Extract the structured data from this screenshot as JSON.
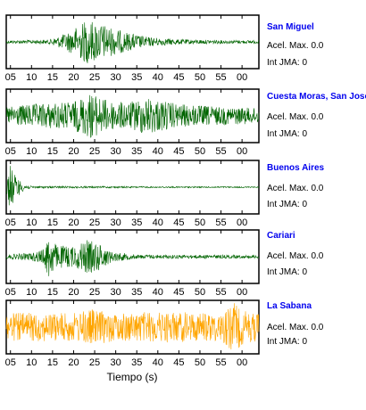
{
  "chart_data": {
    "type": "line",
    "description_kind": "seismogram-panels",
    "xlabel": "Tiempo (s)",
    "x_tick_labels": [
      "05",
      "10",
      "15",
      "20",
      "25",
      "30",
      "35",
      "40",
      "45",
      "50",
      "55",
      "00"
    ],
    "panels": [
      {
        "station": "San Miguel",
        "acel_label": "Acel. Max. 0.0",
        "jma_label": "Int JMA: 0",
        "color": "#006400",
        "envelope": [
          [
            4,
            0.06
          ],
          [
            14,
            0.08
          ],
          [
            17,
            0.25
          ],
          [
            20,
            0.5
          ],
          [
            23,
            0.85
          ],
          [
            26,
            0.75
          ],
          [
            29,
            0.55
          ],
          [
            33,
            0.35
          ],
          [
            38,
            0.18
          ],
          [
            45,
            0.1
          ],
          [
            55,
            0.07
          ],
          [
            64,
            0.06
          ]
        ]
      },
      {
        "station": "Cuesta Moras, San Jose",
        "acel_label": "Acel. Max. 0.0",
        "jma_label": "Int JMA: 0",
        "color": "#006400",
        "envelope": [
          [
            4,
            0.35
          ],
          [
            10,
            0.45
          ],
          [
            15,
            0.5
          ],
          [
            20,
            0.55
          ],
          [
            24,
            0.9
          ],
          [
            28,
            0.6
          ],
          [
            33,
            0.5
          ],
          [
            37,
            0.75
          ],
          [
            45,
            0.45
          ],
          [
            55,
            0.35
          ],
          [
            64,
            0.3
          ]
        ]
      },
      {
        "station": "Buenos Aires",
        "acel_label": "Acel. Max. 0.0",
        "jma_label": "Int JMA: 0",
        "color": "#006400",
        "envelope": [
          [
            4,
            0.3
          ],
          [
            5,
            0.9
          ],
          [
            6,
            0.5
          ],
          [
            8,
            0.15
          ],
          [
            10,
            0.04
          ],
          [
            64,
            0.02
          ]
        ]
      },
      {
        "station": "Cariari",
        "acel_label": "Acel. Max. 0.0",
        "jma_label": "Int JMA: 0",
        "color": "#006400",
        "envelope": [
          [
            4,
            0.08
          ],
          [
            10,
            0.15
          ],
          [
            13,
            0.3
          ],
          [
            14,
            0.9
          ],
          [
            16,
            0.45
          ],
          [
            20,
            0.4
          ],
          [
            23,
            0.65
          ],
          [
            26,
            0.55
          ],
          [
            29,
            0.2
          ],
          [
            35,
            0.08
          ],
          [
            64,
            0.06
          ]
        ]
      },
      {
        "station": "La Sabana",
        "acel_label": "Acel. Max. 0.0",
        "jma_label": "Int JMA: 0",
        "color": "#ffa500",
        "envelope": [
          [
            4,
            0.55
          ],
          [
            20,
            0.55
          ],
          [
            24,
            0.7
          ],
          [
            30,
            0.55
          ],
          [
            40,
            0.6
          ],
          [
            55,
            0.55
          ],
          [
            58,
            0.95
          ],
          [
            61,
            0.6
          ],
          [
            64,
            0.55
          ]
        ]
      }
    ]
  }
}
